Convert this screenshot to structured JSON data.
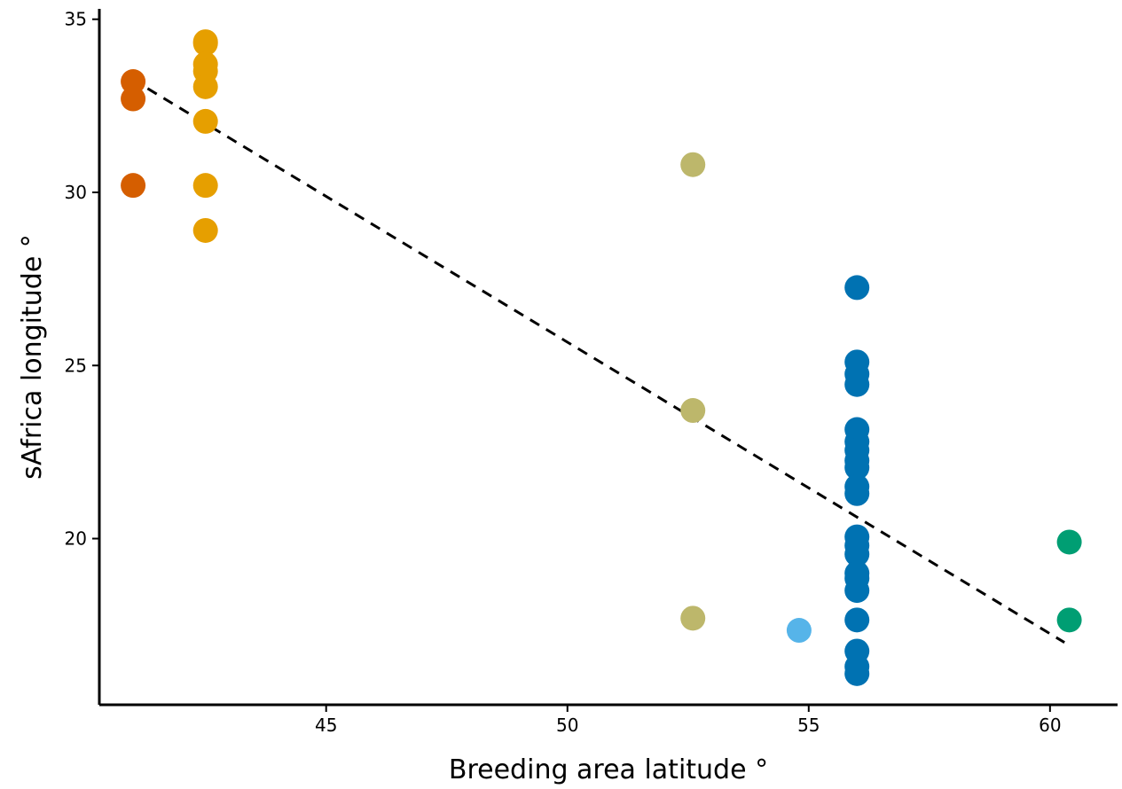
{
  "chart_data": {
    "type": "scatter",
    "xlabel": "Breeding area latitude °",
    "ylabel": "sAfrica longitude °",
    "xlim": [
      40.3,
      61.4
    ],
    "ylim": [
      15.2,
      35.3
    ],
    "x_ticks": [
      45,
      50,
      55,
      60
    ],
    "y_ticks": [
      20,
      25,
      30,
      35
    ],
    "grid": false,
    "legend": "none",
    "colors": {
      "vermilion": "#D55E00",
      "orange": "#E69F00",
      "olive": "#BDB76B",
      "skyblue": "#56B4E9",
      "blue": "#0072B2",
      "green": "#009E73"
    },
    "series": [
      {
        "color": "vermilion",
        "points": [
          [
            41.0,
            33.2
          ],
          [
            41.0,
            32.7
          ],
          [
            41.0,
            30.2
          ]
        ]
      },
      {
        "color": "orange",
        "points": [
          [
            42.5,
            34.35
          ],
          [
            42.5,
            34.3
          ],
          [
            42.5,
            33.7
          ],
          [
            42.5,
            33.5
          ],
          [
            42.5,
            33.05
          ],
          [
            42.5,
            32.05
          ],
          [
            42.5,
            30.2
          ],
          [
            42.5,
            28.9
          ]
        ]
      },
      {
        "color": "olive",
        "points": [
          [
            52.6,
            30.8
          ],
          [
            52.6,
            23.7
          ],
          [
            52.6,
            17.7
          ]
        ]
      },
      {
        "color": "skyblue",
        "points": [
          [
            54.8,
            17.35
          ]
        ]
      },
      {
        "color": "blue",
        "points": [
          [
            56.0,
            27.25
          ],
          [
            56.0,
            25.1
          ],
          [
            56.0,
            24.75
          ],
          [
            56.0,
            24.45
          ],
          [
            56.0,
            23.15
          ],
          [
            56.0,
            22.8
          ],
          [
            56.0,
            22.55
          ],
          [
            56.0,
            22.25
          ],
          [
            56.0,
            22.05
          ],
          [
            56.0,
            21.5
          ],
          [
            56.0,
            21.3
          ],
          [
            56.0,
            20.05
          ],
          [
            56.0,
            19.8
          ],
          [
            56.0,
            19.55
          ],
          [
            56.0,
            19.0
          ],
          [
            56.0,
            18.85
          ],
          [
            56.0,
            18.5
          ],
          [
            56.0,
            17.65
          ],
          [
            56.0,
            16.75
          ],
          [
            56.0,
            16.3
          ],
          [
            56.0,
            16.1
          ]
        ]
      },
      {
        "color": "green",
        "points": [
          [
            60.4,
            19.9
          ],
          [
            60.4,
            17.65
          ]
        ]
      }
    ],
    "trend_line": {
      "style": "dashed",
      "points": [
        [
          41.3,
          33.0
        ],
        [
          60.3,
          17.0
        ]
      ]
    }
  }
}
